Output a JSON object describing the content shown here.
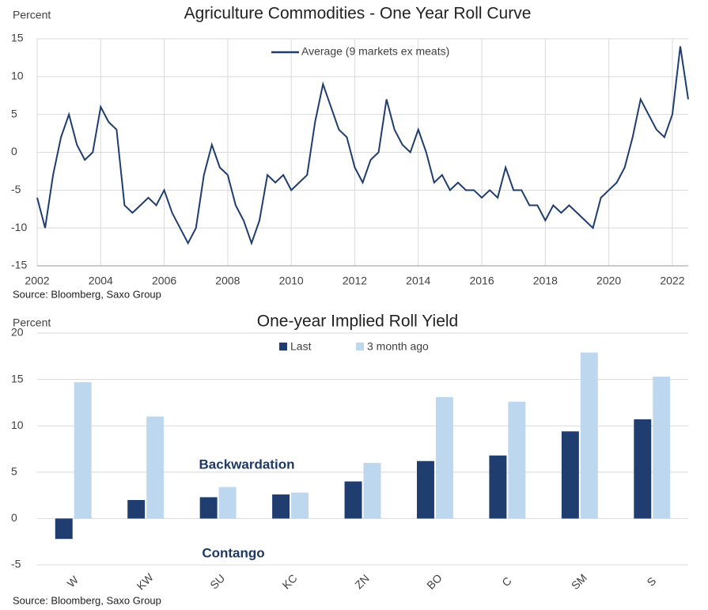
{
  "chart_data": [
    {
      "type": "line",
      "title": "Agriculture Commodities - One Year Roll Curve",
      "y_label": "Percent",
      "source": "Source: Bloomberg, Saxo Group",
      "x": [
        2002,
        2002.25,
        2002.5,
        2002.75,
        2003,
        2003.25,
        2003.5,
        2003.75,
        2004,
        2004.25,
        2004.5,
        2004.75,
        2005,
        2005.25,
        2005.5,
        2005.75,
        2006,
        2006.25,
        2006.5,
        2006.75,
        2007,
        2007.25,
        2007.5,
        2007.75,
        2008,
        2008.25,
        2008.5,
        2008.75,
        2009,
        2009.25,
        2009.5,
        2009.75,
        2010,
        2010.25,
        2010.5,
        2010.75,
        2011,
        2011.25,
        2011.5,
        2011.75,
        2012,
        2012.25,
        2012.5,
        2012.75,
        2013,
        2013.25,
        2013.5,
        2013.75,
        2014,
        2014.25,
        2014.5,
        2014.75,
        2015,
        2015.25,
        2015.5,
        2015.75,
        2016,
        2016.25,
        2016.5,
        2016.75,
        2017,
        2017.25,
        2017.5,
        2017.75,
        2018,
        2018.25,
        2018.5,
        2018.75,
        2019,
        2019.25,
        2019.5,
        2019.75,
        2020,
        2020.25,
        2020.5,
        2020.75,
        2021,
        2021.25,
        2021.5,
        2021.75,
        2022,
        2022.25,
        2022.5
      ],
      "series": [
        {
          "name": "Average (9 markets ex meats)",
          "color": "#1f3d6e",
          "values": [
            -6,
            -10,
            -3,
            2,
            5,
            1,
            -1,
            0,
            6,
            4,
            3,
            -7,
            -8,
            -7,
            -6,
            -7,
            -5,
            -8,
            -10,
            -12,
            -10,
            -3,
            1,
            -2,
            -3,
            -7,
            -9,
            -12,
            -9,
            -3,
            -4,
            -3,
            -5,
            -4,
            -3,
            4,
            9,
            6,
            3,
            2,
            -2,
            -4,
            -1,
            0,
            7,
            3,
            1,
            0,
            3,
            0,
            -4,
            -3,
            -5,
            -4,
            -5,
            -5,
            -6,
            -5,
            -6,
            -2,
            -5,
            -5,
            -7,
            -7,
            -9,
            -7,
            -8,
            -7,
            -8,
            -9,
            -10,
            -6,
            -5,
            -4,
            -2,
            2,
            7,
            5,
            3,
            2,
            5,
            14,
            7
          ]
        }
      ],
      "xlim": [
        2002,
        2022.5
      ],
      "xticks": [
        2002,
        2004,
        2006,
        2008,
        2010,
        2012,
        2014,
        2016,
        2018,
        2020,
        2022
      ],
      "ylim": [
        -15,
        15
      ],
      "yticks": [
        -15,
        -10,
        -5,
        0,
        5,
        10,
        15
      ],
      "grid": true
    },
    {
      "type": "bar",
      "title": "One-year Implied Roll Yield",
      "y_label": "Percent",
      "source": "Source: Bloomberg, Saxo Group",
      "categories": [
        "W",
        "KW",
        "SU",
        "KC",
        "ZN",
        "BO",
        "C",
        "SM",
        "S"
      ],
      "series": [
        {
          "name": "Last",
          "color": "#1f3d6e",
          "values": [
            -2.2,
            2,
            2.3,
            2.6,
            4,
            6.2,
            6.8,
            9.4,
            10.7
          ]
        },
        {
          "name": "3 month ago",
          "color": "#bdd7ee",
          "values": [
            14.7,
            11,
            3.4,
            2.8,
            6,
            13.1,
            12.6,
            17.9,
            15.3
          ]
        }
      ],
      "ylim": [
        -5,
        20
      ],
      "yticks": [
        -5,
        0,
        5,
        10,
        15,
        20
      ],
      "grid": true,
      "annotations": [
        "Backwardation",
        "Contango"
      ]
    }
  ]
}
